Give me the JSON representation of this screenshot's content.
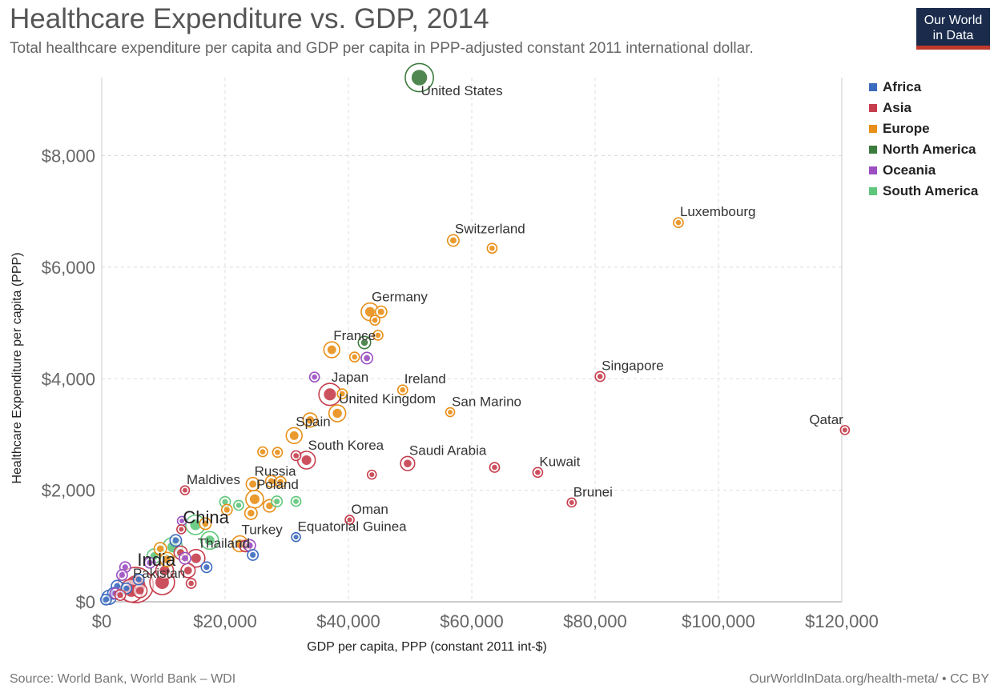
{
  "header": {
    "title": "Healthcare Expenditure vs. GDP, 2014",
    "subtitle": "Total healthcare expenditure per capita and GDP per capita in PPP-adjusted constant 2011 international dollar.",
    "logo_line1": "Our World",
    "logo_line2": "in Data"
  },
  "footer": {
    "source": "Source: World Bank, World Bank – WDI",
    "link": "OurWorldInData.org/health-meta/ • CC BY"
  },
  "colors": {
    "Africa": "#3b6bbf",
    "Asia": "#c63e4d",
    "Europe": "#e88f17",
    "North America": "#3d7a3d",
    "Oceania": "#9b4fc2",
    "South America": "#5fc77b"
  },
  "chart_data": {
    "type": "scatter",
    "title": "Healthcare Expenditure vs. GDP, 2014",
    "xlabel": "GDP per capita, PPP (constant 2011 int-$)",
    "ylabel": "Healthcare Expenditure per capita (PPP)",
    "xlim": [
      0,
      120000
    ],
    "ylim": [
      0,
      9400
    ],
    "x_ticks": [
      0,
      20000,
      40000,
      60000,
      80000,
      100000,
      120000
    ],
    "x_tick_labels": [
      "$0",
      "$20,000",
      "$40,000",
      "$60,000",
      "$80,000",
      "$100,000",
      "$120,000"
    ],
    "y_ticks": [
      0,
      2000,
      4000,
      6000,
      8000
    ],
    "y_tick_labels": [
      "$0",
      "$2,000",
      "$4,000",
      "$6,000",
      "$8,000"
    ],
    "grid": true,
    "legend_position": "right",
    "legend": [
      "Africa",
      "Asia",
      "Europe",
      "North America",
      "Oceania",
      "South America"
    ],
    "points": [
      {
        "label": "United States",
        "region": "North America",
        "x": 51500,
        "y": 9400,
        "size": 3.2
      },
      {
        "label": "Luxembourg",
        "region": "Europe",
        "x": 93500,
        "y": 6800,
        "size": 1.1
      },
      {
        "label": "Switzerland",
        "region": "Europe",
        "x": 57000,
        "y": 6480,
        "size": 1.3
      },
      {
        "label": "",
        "region": "Europe",
        "x": 63300,
        "y": 6340,
        "size": 1.1
      },
      {
        "label": "Germany",
        "region": "Europe",
        "x": 43500,
        "y": 5200,
        "size": 2.0
      },
      {
        "label": "",
        "region": "Europe",
        "x": 44300,
        "y": 5050,
        "size": 1.1
      },
      {
        "label": "",
        "region": "Europe",
        "x": 45300,
        "y": 5200,
        "size": 1.3
      },
      {
        "label": "",
        "region": "Europe",
        "x": 44800,
        "y": 4780,
        "size": 1.1
      },
      {
        "label": "France",
        "region": "Europe",
        "x": 37300,
        "y": 4520,
        "size": 1.8
      },
      {
        "label": "",
        "region": "North America",
        "x": 42600,
        "y": 4650,
        "size": 1.4
      },
      {
        "label": "",
        "region": "Oceania",
        "x": 43000,
        "y": 4370,
        "size": 1.3
      },
      {
        "label": "",
        "region": "Europe",
        "x": 41000,
        "y": 4390,
        "size": 1.1
      },
      {
        "label": "Singapore",
        "region": "Asia",
        "x": 80800,
        "y": 4040,
        "size": 1.1
      },
      {
        "label": "",
        "region": "Oceania",
        "x": 34500,
        "y": 4030,
        "size": 1.1
      },
      {
        "label": "Japan",
        "region": "Asia",
        "x": 37000,
        "y": 3720,
        "size": 2.5
      },
      {
        "label": "",
        "region": "Europe",
        "x": 39000,
        "y": 3730,
        "size": 1.1
      },
      {
        "label": "Ireland",
        "region": "Europe",
        "x": 48800,
        "y": 3800,
        "size": 1.1
      },
      {
        "label": "United Kingdom",
        "region": "Europe",
        "x": 38200,
        "y": 3380,
        "size": 1.9
      },
      {
        "label": "San Marino",
        "region": "Europe",
        "x": 56500,
        "y": 3400,
        "size": 1.0
      },
      {
        "label": "",
        "region": "Europe",
        "x": 33800,
        "y": 3260,
        "size": 1.6
      },
      {
        "label": "Qatar",
        "region": "Asia",
        "x": 120500,
        "y": 3080,
        "size": 1.0
      },
      {
        "label": "Spain",
        "region": "Europe",
        "x": 31200,
        "y": 2980,
        "size": 1.8
      },
      {
        "label": "",
        "region": "Europe",
        "x": 26100,
        "y": 2690,
        "size": 1.1
      },
      {
        "label": "",
        "region": "Europe",
        "x": 28500,
        "y": 2680,
        "size": 1.1
      },
      {
        "label": "",
        "region": "Asia",
        "x": 31500,
        "y": 2620,
        "size": 1.1
      },
      {
        "label": "South Korea",
        "region": "Asia",
        "x": 33200,
        "y": 2540,
        "size": 2.0
      },
      {
        "label": "Saudi Arabia",
        "region": "Asia",
        "x": 49600,
        "y": 2480,
        "size": 1.6
      },
      {
        "label": "",
        "region": "Asia",
        "x": 63700,
        "y": 2410,
        "size": 1.1
      },
      {
        "label": "Kuwait",
        "region": "Asia",
        "x": 70700,
        "y": 2320,
        "size": 1.1
      },
      {
        "label": "",
        "region": "Asia",
        "x": 43800,
        "y": 2280,
        "size": 1.0
      },
      {
        "label": "Russia",
        "region": "Europe",
        "x": 24500,
        "y": 2110,
        "size": 1.5
      },
      {
        "label": "",
        "region": "Europe",
        "x": 27500,
        "y": 2160,
        "size": 1.3
      },
      {
        "label": "",
        "region": "Europe",
        "x": 29000,
        "y": 2150,
        "size": 1.2
      },
      {
        "label": "Maldives",
        "region": "Asia",
        "x": 13500,
        "y": 2000,
        "size": 1.0
      },
      {
        "label": "Poland",
        "region": "Europe",
        "x": 24800,
        "y": 1840,
        "size": 2.0
      },
      {
        "label": "",
        "region": "Europe",
        "x": 27200,
        "y": 1720,
        "size": 1.4
      },
      {
        "label": "",
        "region": "South America",
        "x": 20000,
        "y": 1790,
        "size": 1.2
      },
      {
        "label": "",
        "region": "South America",
        "x": 22200,
        "y": 1730,
        "size": 1.1
      },
      {
        "label": "",
        "region": "South America",
        "x": 28400,
        "y": 1800,
        "size": 1.2
      },
      {
        "label": "",
        "region": "South America",
        "x": 31500,
        "y": 1800,
        "size": 1.1
      },
      {
        "label": "Brunei",
        "region": "Asia",
        "x": 76200,
        "y": 1780,
        "size": 1.0
      },
      {
        "label": "",
        "region": "Europe",
        "x": 24200,
        "y": 1590,
        "size": 1.4
      },
      {
        "label": "",
        "region": "Europe",
        "x": 20300,
        "y": 1650,
        "size": 1.2
      },
      {
        "label": "Oman",
        "region": "Asia",
        "x": 40200,
        "y": 1470,
        "size": 1.0
      },
      {
        "label": "",
        "region": "Oceania",
        "x": 13000,
        "y": 1450,
        "size": 1.0
      },
      {
        "label": "",
        "region": "South America",
        "x": 15200,
        "y": 1380,
        "size": 2.2
      },
      {
        "label": "",
        "region": "Europe",
        "x": 16800,
        "y": 1400,
        "size": 1.3
      },
      {
        "label": "China",
        "region": "Asia",
        "x": 12900,
        "y": 1300,
        "size": 1.0
      },
      {
        "label": "Equatorial Guinea",
        "region": "Africa",
        "x": 31500,
        "y": 1160,
        "size": 1.0
      },
      {
        "label": "Turkey",
        "region": "Europe",
        "x": 22400,
        "y": 1040,
        "size": 1.8
      },
      {
        "label": "",
        "region": "Asia",
        "x": 23300,
        "y": 1000,
        "size": 1.3
      },
      {
        "label": "",
        "region": "Oceania",
        "x": 24000,
        "y": 1010,
        "size": 1.3
      },
      {
        "label": "",
        "region": "South America",
        "x": 17500,
        "y": 1100,
        "size": 2.0
      },
      {
        "label": "",
        "region": "South America",
        "x": 11500,
        "y": 980,
        "size": 2.2
      },
      {
        "label": "",
        "region": "Europe",
        "x": 9500,
        "y": 950,
        "size": 1.4
      },
      {
        "label": "Thailand",
        "region": "Asia",
        "x": 15300,
        "y": 780,
        "size": 2.0
      },
      {
        "label": "",
        "region": "Africa",
        "x": 12000,
        "y": 1100,
        "size": 1.3
      },
      {
        "label": "",
        "region": "Africa",
        "x": 24500,
        "y": 840,
        "size": 1.2
      },
      {
        "label": "",
        "region": "Africa",
        "x": 17000,
        "y": 620,
        "size": 1.2
      },
      {
        "label": "",
        "region": "Asia",
        "x": 14000,
        "y": 560,
        "size": 1.6
      },
      {
        "label": "",
        "region": "Asia",
        "x": 12800,
        "y": 880,
        "size": 1.5
      },
      {
        "label": "",
        "region": "Oceania",
        "x": 13500,
        "y": 780,
        "size": 1.3
      },
      {
        "label": "",
        "region": "Oceania",
        "x": 7800,
        "y": 700,
        "size": 1.2
      },
      {
        "label": "",
        "region": "Oceania",
        "x": 3800,
        "y": 620,
        "size": 1.2
      },
      {
        "label": "",
        "region": "Oceania",
        "x": 3300,
        "y": 480,
        "size": 1.2
      },
      {
        "label": "",
        "region": "South America",
        "x": 8500,
        "y": 820,
        "size": 1.6
      },
      {
        "label": "",
        "region": "Europe",
        "x": 10600,
        "y": 760,
        "size": 1.6
      },
      {
        "label": "",
        "region": "Asia",
        "x": 10200,
        "y": 560,
        "size": 2.0
      },
      {
        "label": "",
        "region": "Asia",
        "x": 14500,
        "y": 330,
        "size": 1.1
      },
      {
        "label": "India",
        "region": "Asia",
        "x": 5500,
        "y": 300,
        "size": 4.0
      },
      {
        "label": "",
        "region": "Asia",
        "x": 9800,
        "y": 350,
        "size": 2.8
      },
      {
        "label": "Pakistan",
        "region": "Asia",
        "x": 4800,
        "y": 200,
        "size": 2.6
      },
      {
        "label": "",
        "region": "Asia",
        "x": 6200,
        "y": 200,
        "size": 1.6
      },
      {
        "label": "",
        "region": "Africa",
        "x": 2500,
        "y": 280,
        "size": 1.3
      },
      {
        "label": "",
        "region": "Africa",
        "x": 1900,
        "y": 150,
        "size": 1.3
      },
      {
        "label": "",
        "region": "Africa",
        "x": 1200,
        "y": 80,
        "size": 1.6
      },
      {
        "label": "",
        "region": "Africa",
        "x": 700,
        "y": 40,
        "size": 1.2
      },
      {
        "label": "",
        "region": "Oceania",
        "x": 2200,
        "y": 150,
        "size": 1.2
      },
      {
        "label": "",
        "region": "Africa",
        "x": 6000,
        "y": 400,
        "size": 1.2
      },
      {
        "label": "",
        "region": "Africa",
        "x": 4000,
        "y": 240,
        "size": 1.2
      },
      {
        "label": "",
        "region": "Asia",
        "x": 3000,
        "y": 120,
        "size": 1.2
      }
    ]
  }
}
